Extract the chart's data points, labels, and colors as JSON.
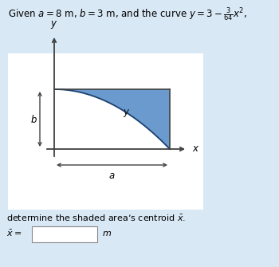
{
  "title": "Given $a = 8$ m, $b = 3$ m, and the curve $y = 3 - \\frac{3}{64}x^2$,",
  "a": 8,
  "b": 3,
  "shaded_color": "#5b8fc9",
  "shaded_alpha": 0.9,
  "bg_color": "#d9e8f5",
  "panel_color": "#ffffff",
  "bottom_text": "determine the shaded area’s centroid $\\bar{x}$.",
  "answer_label": "$\\bar{x} =$",
  "answer_unit": "$m$",
  "label_y_axis": "$y$",
  "label_x_axis": "$x$",
  "label_b": "$b$",
  "label_a": "$a$",
  "label_y_curve": "$y$",
  "font_size_title": 8.5,
  "font_size_labels": 8.5,
  "font_size_small": 8.0
}
